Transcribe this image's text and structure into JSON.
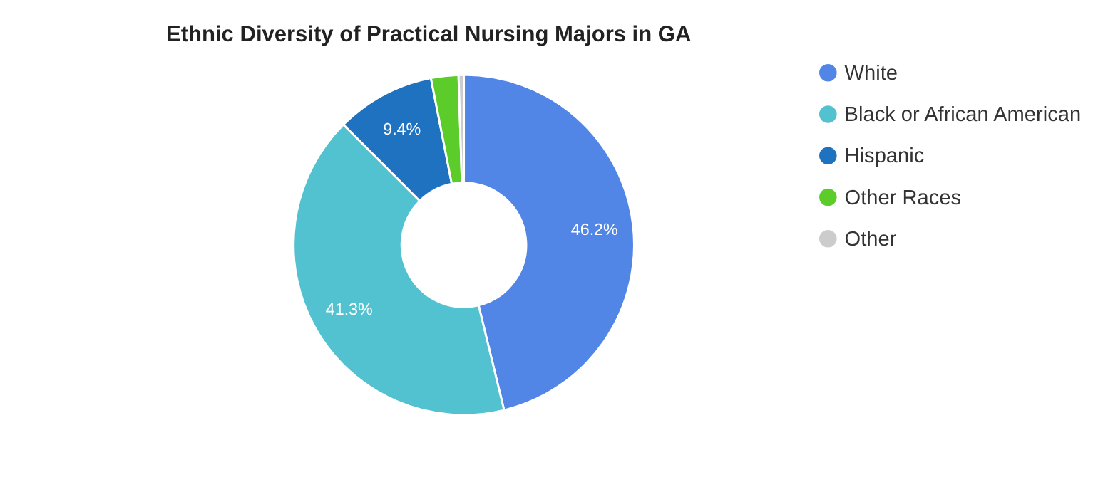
{
  "chart_data": {
    "type": "donut",
    "title": "Ethnic Diversity of Practical Nursing Majors in GA",
    "categories": [
      "White",
      "Black or African American",
      "Hispanic",
      "Other Races",
      "Other"
    ],
    "values": [
      46.2,
      41.3,
      9.4,
      2.6,
      0.5
    ],
    "colors": [
      "#5185e6",
      "#52c1d0",
      "#1f72c0",
      "#5ccc2a",
      "#cccccc"
    ],
    "value_labels": [
      "46.2%",
      "41.3%",
      "9.4%",
      null,
      null
    ],
    "legend": "right"
  }
}
